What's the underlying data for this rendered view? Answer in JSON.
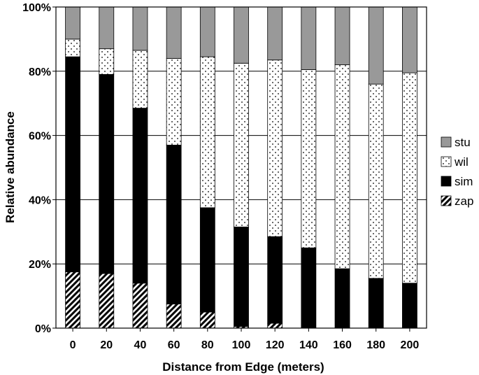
{
  "chart_data": {
    "type": "bar",
    "stacked": true,
    "title": "",
    "xlabel": "Distance from Edge (meters)",
    "ylabel": "Relative abundance",
    "categories": [
      "0",
      "20",
      "40",
      "60",
      "80",
      "100",
      "120",
      "140",
      "160",
      "180",
      "200"
    ],
    "y_ticks": [
      "0%",
      "20%",
      "40%",
      "60%",
      "80%",
      "100%"
    ],
    "ylim": [
      0,
      100
    ],
    "grid": "horizontal",
    "legend_position": "right",
    "series": [
      {
        "name": "zap",
        "pattern": "hatch",
        "color": "#000000",
        "values": [
          17.5,
          17,
          14,
          7.5,
          5,
          0.5,
          1.5,
          0,
          0,
          0,
          0
        ]
      },
      {
        "name": "sim",
        "pattern": "solid",
        "color": "#000000",
        "values": [
          67,
          62,
          54.5,
          49.5,
          32.5,
          31,
          27,
          25,
          18.5,
          15.5,
          14
        ]
      },
      {
        "name": "wil",
        "pattern": "dots",
        "color": "#ffffff",
        "values": [
          5.5,
          8,
          18,
          27,
          47,
          51,
          55,
          55.5,
          63.5,
          60.5,
          65.5
        ]
      },
      {
        "name": "stu",
        "pattern": "solid",
        "color": "#999999",
        "values": [
          10,
          13,
          13.5,
          16,
          15.5,
          17.5,
          16.5,
          19.5,
          18,
          24,
          20.5
        ]
      }
    ]
  }
}
